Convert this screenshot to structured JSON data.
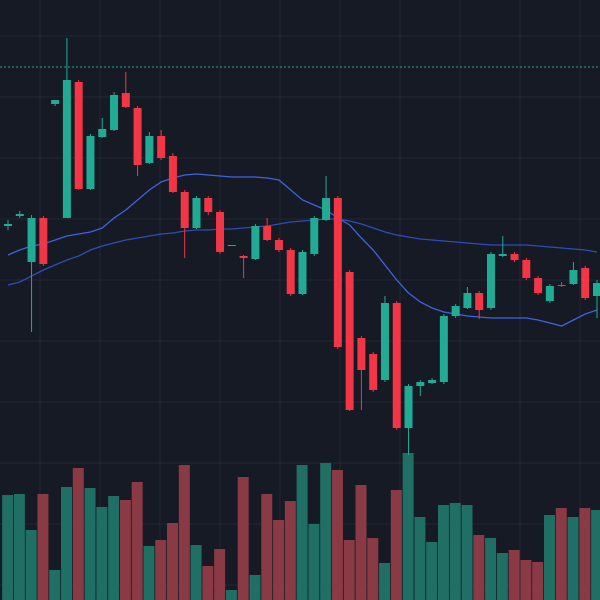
{
  "chart_data": {
    "type": "candlestick",
    "ylim": [
      0,
      600
    ],
    "y2lim": [
      0,
      600
    ],
    "up_color": "#22ab94",
    "down_color": "#f23645",
    "up_volume_color": "#1f6f64",
    "down_volume_color": "#8a3a45",
    "price_line": 533,
    "price_line_color": "#22ab94",
    "grid": true,
    "open": [
      374,
      384,
      338,
      382,
      496,
      382,
      518,
      411,
      463,
      470,
      507,
      492,
      437,
      464,
      444,
      408,
      372,
      402,
      388,
      354,
      344,
      341,
      374,
      360,
      350,
      306,
      346,
      380,
      402,
      328,
      262,
      246,
      220,
      297,
      172,
      214,
      217,
      218,
      284,
      292,
      307,
      292,
      344,
      346,
      340,
      322,
      299,
      315,
      316,
      332,
      304
    ],
    "high": [
      380,
      389,
      385,
      384,
      500,
      562,
      520,
      466,
      482,
      508,
      528,
      494,
      468,
      470,
      447,
      410,
      404,
      404,
      390,
      355,
      345,
      376,
      382,
      362,
      352,
      350,
      384,
      424,
      404,
      330,
      264,
      248,
      304,
      299,
      216,
      220,
      222,
      286,
      296,
      313,
      309,
      348,
      364,
      348,
      342,
      324,
      316,
      318,
      338,
      334,
      320
    ],
    "low": [
      370,
      382,
      268,
      334,
      494,
      382,
      410,
      410,
      462,
      469,
      492,
      424,
      436,
      440,
      407,
      342,
      371,
      385,
      346,
      354,
      322,
      340,
      359,
      348,
      304,
      305,
      344,
      379,
      251,
      189,
      190,
      208,
      218,
      170,
      145,
      204,
      216,
      216,
      282,
      291,
      281,
      290,
      343,
      338,
      320,
      305,
      297,
      313,
      315,
      300,
      282
    ],
    "close": [
      376,
      386,
      382,
      336,
      500,
      520,
      411,
      464,
      471,
      505,
      493,
      435,
      464,
      442,
      408,
      372,
      402,
      388,
      348,
      355,
      342,
      374,
      360,
      350,
      306,
      348,
      382,
      402,
      253,
      190,
      230,
      210,
      297,
      172,
      214,
      218,
      220,
      284,
      294,
      307,
      290,
      346,
      346,
      340,
      322,
      307,
      314,
      314,
      330,
      302,
      317
    ],
    "volume": [
      105,
      106,
      70,
      106,
      30,
      113,
      132,
      112,
      93,
      104,
      100,
      118,
      54,
      60,
      77,
      135,
      55,
      34,
      51,
      10,
      123,
      25,
      106,
      80,
      99,
      135,
      76,
      137,
      130,
      60,
      115,
      62,
      37,
      110,
      147,
      83,
      58,
      95,
      97,
      95,
      65,
      62,
      47,
      50,
      40,
      38,
      85,
      92,
      83,
      92,
      90
    ],
    "series": [
      {
        "color": "#3d63e0",
        "values": [
          345,
          350,
          354,
          356,
          360,
          364,
          366,
          368,
          372,
          382,
          390,
          400,
          410,
          418,
          422,
          425,
          426,
          425,
          424,
          423,
          423,
          423,
          422,
          420,
          410,
          400,
          395,
          390,
          382,
          375,
          362,
          350,
          335,
          320,
          307,
          298,
          292,
          288,
          286,
          284,
          283,
          282,
          282,
          282,
          282,
          280,
          277,
          274,
          280,
          286,
          290
        ]
      },
      {
        "color": "#2d4db8",
        "values": [
          315,
          318,
          324,
          330,
          335,
          340,
          344,
          350,
          354,
          357,
          360,
          362,
          364,
          366,
          367,
          369,
          370,
          370,
          371,
          371,
          372,
          373,
          374,
          376,
          378,
          379,
          380,
          381,
          381,
          379,
          376,
          372,
          368,
          365,
          363,
          361,
          360,
          359,
          358,
          357,
          356,
          355,
          355,
          355,
          355,
          354,
          353,
          352,
          351,
          350,
          348
        ]
      }
    ]
  }
}
